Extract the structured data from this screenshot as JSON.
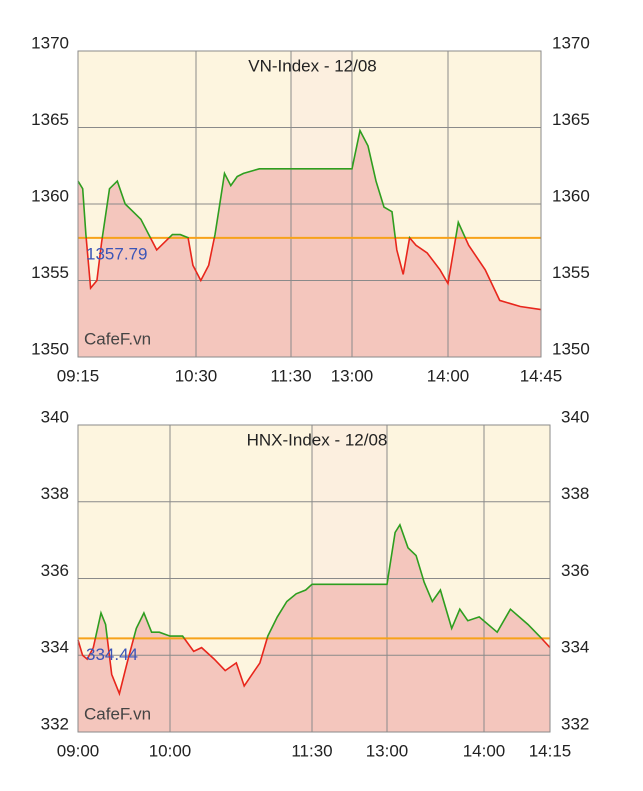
{
  "chart_data": [
    {
      "type": "line",
      "title": "VN-Index - 12/08",
      "watermark": "CafeF.vn",
      "x": [
        "09:15",
        "09:18",
        "09:20",
        "09:23",
        "09:27",
        "09:30",
        "09:35",
        "09:40",
        "09:45",
        "09:50",
        "09:55",
        "10:00",
        "10:05",
        "10:10",
        "10:15",
        "10:20",
        "10:25",
        "10:28",
        "10:33",
        "10:38",
        "10:42",
        "10:45",
        "10:48",
        "10:52",
        "10:56",
        "11:00",
        "11:10",
        "11:30",
        "13:00",
        "13:05",
        "13:10",
        "13:15",
        "13:20",
        "13:25",
        "13:28",
        "13:32",
        "13:36",
        "13:40",
        "13:47",
        "13:55",
        "14:00",
        "14:05",
        "14:10",
        "14:18",
        "14:25",
        "14:35",
        "14:45"
      ],
      "values": [
        1361.5,
        1361,
        1358,
        1354.5,
        1355,
        1357.5,
        1361,
        1361.5,
        1360,
        1359.5,
        1359,
        1358,
        1357,
        1357.5,
        1358,
        1358,
        1357.8,
        1356,
        1355,
        1356,
        1358,
        1360,
        1362,
        1361.2,
        1361.8,
        1362,
        1362.3,
        1362.3,
        1362.3,
        1364.8,
        1363.8,
        1361.5,
        1359.8,
        1359.5,
        1357,
        1355.4,
        1357.8,
        1357.3,
        1356.8,
        1355.7,
        1354.8,
        1358.8,
        1357.3,
        1355.7,
        1353.7,
        1353.3,
        1353.1
      ],
      "xticks": [
        "09:15",
        "10:30",
        "11:30",
        "13:00",
        "14:00",
        "14:45"
      ],
      "ylim": [
        1350,
        1370
      ],
      "yticks": [
        1350,
        1355,
        1360,
        1365,
        1370
      ],
      "reference": 1357.79,
      "up_color": "#2e9e1f",
      "down_color": "#e8261c",
      "fill_color": "#f4c6bd",
      "reference_color": "#f7a21a",
      "background": "#fdf5df",
      "break_color": "#fcefdf"
    },
    {
      "type": "line",
      "title": "HNX-Index - 12/08",
      "watermark": "CafeF.vn",
      "x": [
        "09:00",
        "09:03",
        "09:06",
        "09:10",
        "09:15",
        "09:18",
        "09:22",
        "09:27",
        "09:32",
        "09:38",
        "09:43",
        "09:48",
        "09:53",
        "10:00",
        "10:08",
        "10:15",
        "10:20",
        "10:28",
        "10:35",
        "10:42",
        "10:47",
        "10:52",
        "10:57",
        "11:02",
        "11:08",
        "11:14",
        "11:20",
        "11:26",
        "11:30",
        "13:00",
        "13:05",
        "13:08",
        "13:13",
        "13:18",
        "13:23",
        "13:28",
        "13:33",
        "13:40",
        "13:45",
        "13:50",
        "13:57",
        "14:03",
        "14:06",
        "14:10",
        "14:13",
        "14:15"
      ],
      "values": [
        334.4,
        334,
        333.9,
        334.2,
        335.1,
        334.8,
        333.5,
        333,
        333.8,
        334.7,
        335.1,
        334.6,
        334.6,
        334.5,
        334.5,
        334.1,
        334.2,
        333.9,
        333.6,
        333.8,
        333.2,
        333.5,
        333.8,
        334.5,
        335,
        335.4,
        335.6,
        335.7,
        335.85,
        335.85,
        337.2,
        337.4,
        336.8,
        336.6,
        335.9,
        335.4,
        335.7,
        334.7,
        335.2,
        334.9,
        335,
        334.6,
        335.2,
        334.8,
        334.45,
        334.2
      ],
      "xticks": [
        "09:00",
        "10:00",
        "11:30",
        "13:00",
        "14:00",
        "14:15"
      ],
      "ylim": [
        332,
        340
      ],
      "yticks": [
        332,
        334,
        336,
        338,
        340
      ],
      "reference": 334.44,
      "up_color": "#2e9e1f",
      "down_color": "#e8261c",
      "fill_color": "#f4c6bd",
      "reference_color": "#f7a21a",
      "background": "#fdf5df",
      "break_color": "#fcefdf"
    }
  ]
}
